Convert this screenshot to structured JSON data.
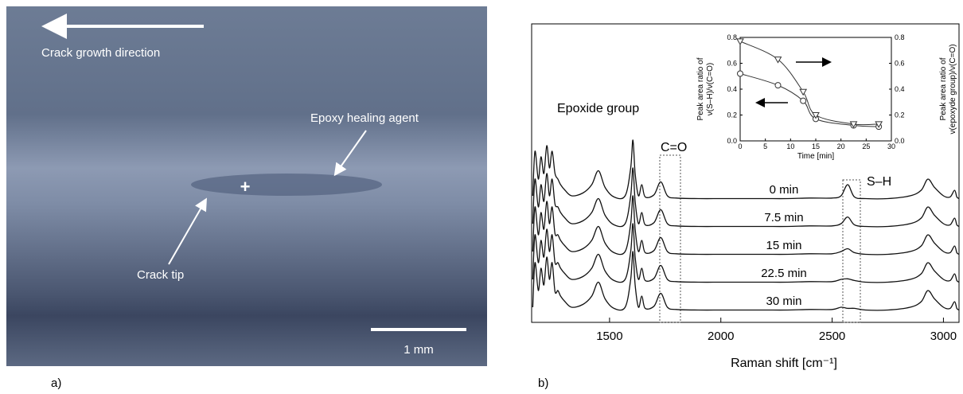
{
  "panel_a": {
    "direction": "Crack growth direction",
    "agent": "Epoxy healing agent",
    "tip": "Crack tip",
    "marker": "+",
    "scale": "1 mm"
  },
  "panel_labels": [
    "a)",
    "b)"
  ],
  "chart_data": [
    {
      "type": "line",
      "xlabel": "Raman shift [cm⁻¹]",
      "annotations": [
        "Epoxide group",
        "C=O",
        "S–H"
      ],
      "xlim": [
        1150,
        3070
      ],
      "xticks": [
        1500,
        2000,
        2500,
        3000
      ],
      "color": "#111111",
      "x": [
        1155,
        1165,
        1180,
        1192,
        1205,
        1218,
        1230,
        1242,
        1255,
        1268,
        1280,
        1300,
        1330,
        1380,
        1420,
        1450,
        1480,
        1520,
        1570,
        1595,
        1605,
        1615,
        1630,
        1645,
        1660,
        1700,
        1730,
        1760,
        1800,
        1900,
        2000,
        2100,
        2200,
        2300,
        2400,
        2500,
        2540,
        2570,
        2600,
        2650,
        2750,
        2850,
        2900,
        2930,
        2960,
        3000,
        3030,
        3050,
        3060,
        3070
      ],
      "series": [
        {
          "name": "0 min",
          "values": [
            0.1,
            0.9,
            0.4,
            0.8,
            0.5,
            1.0,
            0.6,
            0.9,
            0.5,
            0.4,
            0.3,
            0.2,
            0.1,
            0.15,
            0.3,
            0.55,
            0.25,
            0.08,
            0.1,
            0.6,
            1.1,
            0.5,
            0.1,
            0.3,
            0.08,
            0.12,
            0.35,
            0.1,
            0.06,
            0.05,
            0.05,
            0.05,
            0.05,
            0.05,
            0.06,
            0.06,
            0.1,
            0.3,
            0.08,
            0.05,
            0.05,
            0.1,
            0.2,
            0.4,
            0.25,
            0.1,
            0.08,
            0.2,
            0.08,
            0.05
          ]
        },
        {
          "name": "7.5 min",
          "values": [
            0.1,
            0.9,
            0.4,
            0.8,
            0.5,
            1.0,
            0.6,
            0.9,
            0.45,
            0.4,
            0.3,
            0.2,
            0.1,
            0.15,
            0.3,
            0.55,
            0.25,
            0.08,
            0.1,
            0.6,
            1.1,
            0.5,
            0.1,
            0.3,
            0.08,
            0.12,
            0.35,
            0.1,
            0.06,
            0.05,
            0.05,
            0.05,
            0.05,
            0.05,
            0.06,
            0.06,
            0.1,
            0.22,
            0.08,
            0.05,
            0.05,
            0.1,
            0.2,
            0.4,
            0.25,
            0.1,
            0.08,
            0.2,
            0.08,
            0.05
          ]
        },
        {
          "name": "15 min",
          "values": [
            0.1,
            0.9,
            0.4,
            0.8,
            0.5,
            1.0,
            0.6,
            0.9,
            0.42,
            0.4,
            0.3,
            0.2,
            0.1,
            0.15,
            0.3,
            0.55,
            0.25,
            0.08,
            0.1,
            0.6,
            1.1,
            0.5,
            0.1,
            0.3,
            0.08,
            0.12,
            0.35,
            0.1,
            0.06,
            0.05,
            0.05,
            0.05,
            0.05,
            0.05,
            0.06,
            0.06,
            0.1,
            0.15,
            0.08,
            0.05,
            0.05,
            0.1,
            0.2,
            0.4,
            0.25,
            0.1,
            0.08,
            0.2,
            0.08,
            0.05
          ]
        },
        {
          "name": "22.5 min",
          "values": [
            0.1,
            0.9,
            0.4,
            0.8,
            0.5,
            1.0,
            0.6,
            0.9,
            0.4,
            0.4,
            0.3,
            0.2,
            0.1,
            0.15,
            0.3,
            0.55,
            0.25,
            0.08,
            0.1,
            0.6,
            1.1,
            0.5,
            0.1,
            0.3,
            0.08,
            0.12,
            0.35,
            0.1,
            0.06,
            0.05,
            0.05,
            0.05,
            0.05,
            0.05,
            0.06,
            0.06,
            0.1,
            0.11,
            0.08,
            0.05,
            0.05,
            0.1,
            0.2,
            0.4,
            0.25,
            0.1,
            0.08,
            0.2,
            0.08,
            0.05
          ]
        },
        {
          "name": "30 min",
          "values": [
            0.1,
            0.9,
            0.4,
            0.8,
            0.5,
            1.0,
            0.6,
            0.9,
            0.38,
            0.4,
            0.3,
            0.2,
            0.1,
            0.15,
            0.3,
            0.55,
            0.25,
            0.08,
            0.1,
            0.6,
            1.1,
            0.5,
            0.1,
            0.3,
            0.08,
            0.12,
            0.35,
            0.1,
            0.06,
            0.05,
            0.05,
            0.05,
            0.05,
            0.05,
            0.06,
            0.06,
            0.1,
            0.08,
            0.08,
            0.05,
            0.05,
            0.1,
            0.2,
            0.4,
            0.25,
            0.1,
            0.08,
            0.2,
            0.08,
            0.05
          ]
        }
      ]
    },
    {
      "type": "line",
      "xlabel": "Time [min]",
      "ylabel": [
        "Peak area ratio of",
        "ν(S–H)/ν(C=O)"
      ],
      "y2label": [
        "Peak area ratio of",
        "ν(epoxyde group)/ν(C=O)"
      ],
      "xlim": [
        0,
        30
      ],
      "xticks": [
        0,
        5,
        10,
        15,
        20,
        25,
        30
      ],
      "ylim": [
        0,
        0.8
      ],
      "yticks": [
        {
          "value": 0,
          "label": "0.0"
        },
        0.2,
        0.4,
        0.6,
        0.8
      ],
      "y2lim": [
        0,
        0.8
      ],
      "y2ticks": [
        {
          "value": 0,
          "label": "0.0"
        },
        0.2,
        0.4,
        0.6,
        0.8
      ],
      "x": [
        0,
        7.5,
        12.5,
        15,
        22.5,
        27.5
      ],
      "series": [
        {
          "marker": "circle",
          "color": "#333333",
          "values": [
            0.52,
            0.43,
            0.31,
            0.17,
            0.12,
            0.11
          ]
        },
        {
          "marker": "triangle",
          "color": "#333333",
          "axis": "y2",
          "values": [
            0.77,
            0.63,
            0.38,
            0.2,
            0.13,
            0.13
          ]
        }
      ]
    }
  ]
}
